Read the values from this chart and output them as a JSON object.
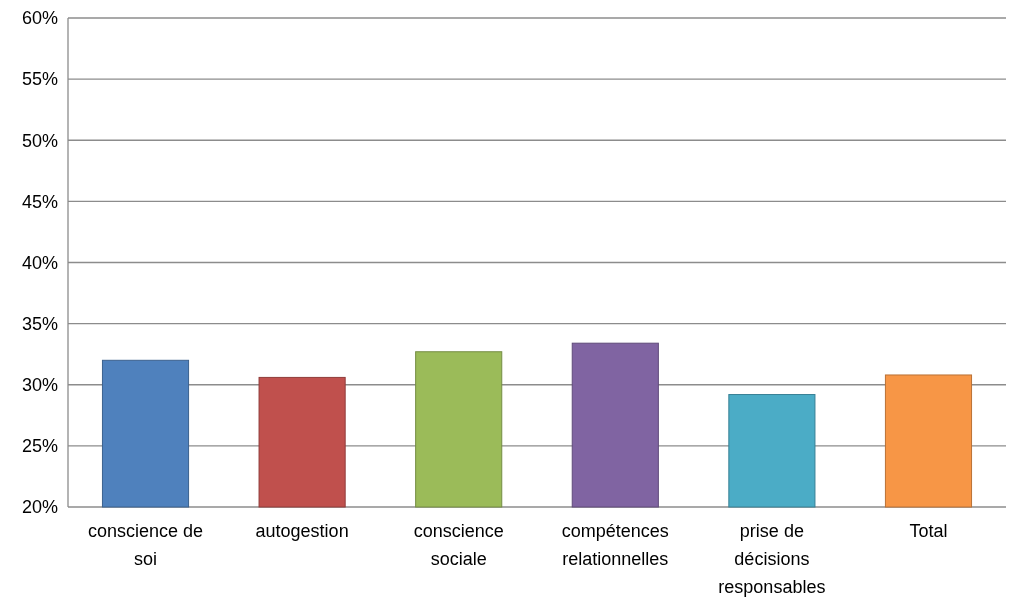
{
  "chart_data": {
    "type": "bar",
    "categories": [
      "conscience de soi",
      "autogestion",
      "conscience sociale",
      "compétences relationnelles",
      "prise de décisions responsables",
      "Total"
    ],
    "values": [
      32.0,
      30.6,
      32.7,
      33.4,
      29.2,
      30.8
    ],
    "colors": [
      "#4f81bd",
      "#c0504d",
      "#9bbb59",
      "#8064a2",
      "#4bacc6",
      "#f79646"
    ],
    "ylim": [
      20,
      60
    ],
    "yticks": [
      {
        "value": 20,
        "label": "20%"
      },
      {
        "value": 25,
        "label": "25%"
      },
      {
        "value": 30,
        "label": "30%"
      },
      {
        "value": 35,
        "label": "35%"
      },
      {
        "value": 40,
        "label": "40%"
      },
      {
        "value": 45,
        "label": "45%"
      },
      {
        "value": 50,
        "label": "50%"
      },
      {
        "value": 55,
        "label": "55%"
      },
      {
        "value": 60,
        "label": "60%"
      }
    ],
    "grid": "y"
  }
}
